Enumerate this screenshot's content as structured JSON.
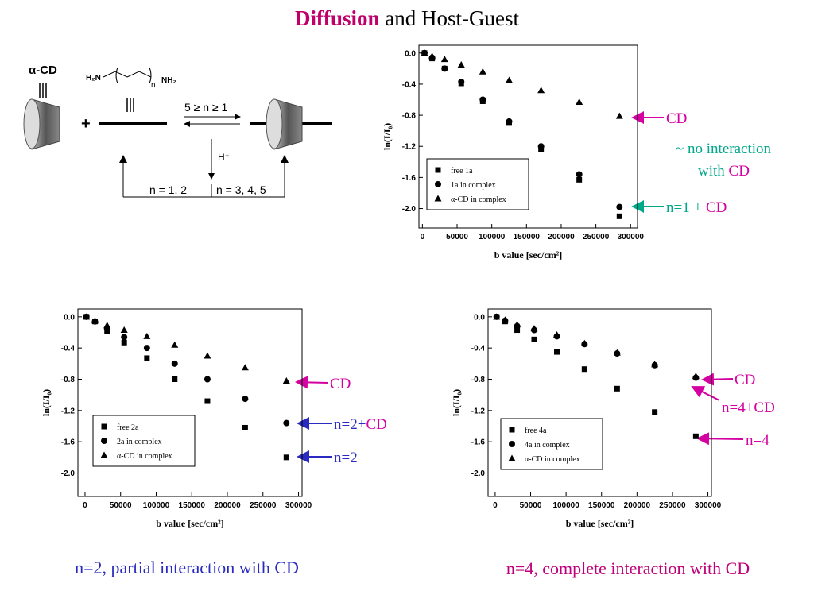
{
  "title": {
    "bold": "Diffusion",
    "rest": "and Host-Guest"
  },
  "scheme": {
    "host": "α-CD",
    "amine_left": "H₂N",
    "amine_right": "NH₂",
    "amine_n": "n",
    "condition": "5 ≥ n ≥ 1",
    "acid": "H⁺",
    "left_case": "n = 1, 2",
    "right_case": "n = 3, 4, 5"
  },
  "chart_data": [
    {
      "type": "scatter",
      "ylabel": "ln(I/I₀)",
      "xlabel": "b value [sec/cm²]",
      "x": [
        3000,
        14000,
        32000,
        56000,
        87000,
        125000,
        171000,
        226000,
        284000
      ],
      "series": [
        {
          "name": "free 1a",
          "marker": "square",
          "color": "#000000",
          "values": [
            0,
            -0.07,
            -0.2,
            -0.39,
            -0.62,
            -0.9,
            -1.24,
            -1.63,
            -2.1
          ]
        },
        {
          "name": "1a in complex",
          "marker": "circle",
          "color": "#000000",
          "values": [
            0,
            -0.06,
            -0.2,
            -0.37,
            -0.6,
            -0.88,
            -1.2,
            -1.56,
            -1.98
          ]
        },
        {
          "name": "α-CD in complex",
          "marker": "triangle",
          "color": "#000000",
          "values": [
            0,
            -0.04,
            -0.08,
            -0.15,
            -0.24,
            -0.35,
            -0.48,
            -0.63,
            -0.81
          ]
        }
      ],
      "xlim": [
        -5000,
        310000
      ],
      "xticks": [
        0,
        50000,
        100000,
        150000,
        200000,
        250000,
        300000
      ],
      "ylim": [
        -2.25,
        0.1
      ],
      "yticks": [
        {
          "value": 0,
          "label": "0.0"
        },
        -0.4,
        -0.8,
        -1.2,
        -1.6,
        {
          "value": -2,
          "label": "-2.0"
        }
      ]
    },
    {
      "type": "scatter",
      "ylabel": "ln(I/I₀)",
      "xlabel": "b value [sec/cm²]",
      "x": [
        2000,
        14000,
        31000,
        55000,
        87000,
        126000,
        172000,
        225000,
        283000
      ],
      "series": [
        {
          "name": "free 2a",
          "marker": "square",
          "color": "#000000",
          "values": [
            0,
            -0.06,
            -0.18,
            -0.33,
            -0.53,
            -0.8,
            -1.08,
            -1.42,
            -1.8
          ]
        },
        {
          "name": "2a in complex",
          "marker": "circle",
          "color": "#000000",
          "values": [
            0,
            -0.06,
            -0.15,
            -0.26,
            -0.4,
            -0.6,
            -0.8,
            -1.05,
            -1.36
          ]
        },
        {
          "name": "α-CD in complex",
          "marker": "triangle",
          "color": "#000000",
          "values": [
            0,
            -0.05,
            -0.11,
            -0.17,
            -0.25,
            -0.36,
            -0.5,
            -0.65,
            -0.82
          ]
        }
      ],
      "xlim": [
        -10000,
        305000
      ],
      "xticks": [
        0,
        50000,
        100000,
        150000,
        200000,
        250000,
        300000
      ],
      "ylim": [
        -2.3,
        0.1
      ],
      "yticks": [
        {
          "value": 0,
          "label": "0.0"
        },
        -0.4,
        -0.8,
        -1.2,
        -1.6,
        {
          "value": -2,
          "label": "-2.0"
        }
      ]
    },
    {
      "type": "scatter",
      "ylabel": "ln(I/I₀)",
      "xlabel": "b value [sec/cm²]",
      "x": [
        2000,
        14000,
        31000,
        55000,
        87000,
        126000,
        172000,
        225000,
        283000
      ],
      "series": [
        {
          "name": "free 4a",
          "marker": "square",
          "color": "#000000",
          "values": [
            0,
            -0.06,
            -0.17,
            -0.29,
            -0.45,
            -0.67,
            -0.92,
            -1.22,
            -1.53
          ]
        },
        {
          "name": "4a in complex",
          "marker": "circle",
          "color": "#000000",
          "values": [
            0,
            -0.05,
            -0.12,
            -0.17,
            -0.25,
            -0.35,
            -0.47,
            -0.62,
            -0.78
          ]
        },
        {
          "name": "α-CD in complex",
          "marker": "triangle",
          "color": "#000000",
          "values": [
            0,
            -0.04,
            -0.1,
            -0.15,
            -0.23,
            -0.34,
            -0.46,
            -0.61,
            -0.76
          ]
        }
      ],
      "xlim": [
        -10000,
        305000
      ],
      "xticks": [
        0,
        50000,
        100000,
        150000,
        200000,
        250000,
        300000
      ],
      "ylim": [
        -2.3,
        0.1
      ],
      "yticks": [
        {
          "value": 0,
          "label": "0.0"
        },
        -0.4,
        -0.8,
        -1.2,
        -1.6,
        {
          "value": -2,
          "label": "-2.0"
        }
      ]
    }
  ],
  "annotations": {
    "top": {
      "cd": "CD",
      "no_interaction": "~ no interaction",
      "with": "with",
      "with_cd": "CD",
      "n1": "n=1 +",
      "n1_cd": "CD"
    },
    "left": {
      "cd": "CD",
      "n2cd": "n=2+",
      "n2cd_cd": "CD",
      "n2": "n=2"
    },
    "right": {
      "cd": "CD",
      "n4cd": "n=4+CD",
      "n4": "n=4"
    }
  },
  "captions": [
    "n=2, partial interaction with CD",
    "n=4, complete interaction with CD"
  ]
}
